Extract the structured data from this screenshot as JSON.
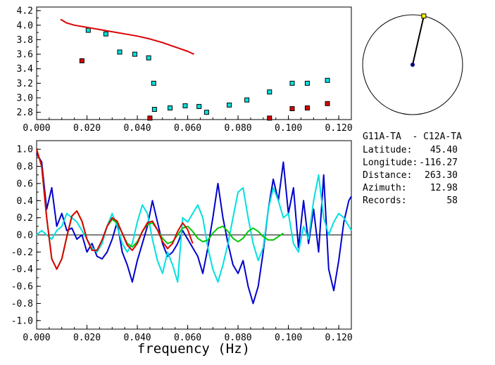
{
  "chart_data": [
    {
      "type": "scatter",
      "xlim": [
        0.0,
        0.125
      ],
      "ylim": [
        2.7,
        4.25
      ],
      "x_ticks": [
        "0.000",
        "0.020",
        "0.040",
        "0.060",
        "0.080",
        "0.100",
        "0.120"
      ],
      "y_ticks": [
        "2.8",
        "3.0",
        "3.2",
        "3.4",
        "3.6",
        "3.8",
        "4.0",
        "4.2"
      ],
      "grid": false,
      "series": [
        {
          "color": "#00e0e0",
          "marker": "square",
          "x": [
            0.0205,
            0.0275,
            0.033,
            0.039,
            0.0445,
            0.0465,
            0.0468,
            0.053,
            0.059,
            0.0645,
            0.0675,
            0.0765,
            0.0835,
            0.0925,
            0.1015,
            0.1075,
            0.1155
          ],
          "y": [
            3.93,
            3.88,
            3.63,
            3.6,
            3.55,
            3.2,
            2.84,
            2.86,
            2.89,
            2.88,
            2.8,
            2.9,
            2.97,
            3.08,
            3.2,
            3.2,
            3.24
          ]
        },
        {
          "color": "#dd0000",
          "marker": "square",
          "x": [
            0.018,
            0.045,
            0.0925,
            0.1015,
            0.1075,
            0.1155
          ],
          "y": [
            3.51,
            2.72,
            2.72,
            2.85,
            2.86,
            2.92
          ]
        },
        {
          "color": "#dd0000",
          "marker": "line",
          "x": [
            0.0095,
            0.012,
            0.015,
            0.02,
            0.025,
            0.03,
            0.035,
            0.04,
            0.045,
            0.05,
            0.055,
            0.06,
            0.0625
          ],
          "y": [
            4.08,
            4.03,
            4.0,
            3.97,
            3.94,
            3.91,
            3.88,
            3.85,
            3.81,
            3.76,
            3.7,
            3.64,
            3.6
          ]
        }
      ]
    },
    {
      "type": "line",
      "xlabel": "frequency (Hz)",
      "xlim": [
        0.0,
        0.125
      ],
      "ylim": [
        -1.1,
        1.1
      ],
      "x_ticks": [
        "0.000",
        "0.020",
        "0.040",
        "0.060",
        "0.080",
        "0.100",
        "0.120"
      ],
      "y_ticks": [
        "-1.0",
        "-0.8",
        "-0.6",
        "-0.4",
        "-0.2",
        "0.0",
        "0.2",
        "0.4",
        "0.6",
        "0.8",
        "1.0"
      ],
      "zero_line": true,
      "grid": false,
      "series": [
        {
          "color": "#0000cc",
          "x": [
            0.0,
            0.002,
            0.004,
            0.006,
            0.008,
            0.01,
            0.012,
            0.014,
            0.016,
            0.018,
            0.02,
            0.022,
            0.024,
            0.026,
            0.028,
            0.03,
            0.032,
            0.034,
            0.036,
            0.038,
            0.04,
            0.042,
            0.044,
            0.046,
            0.048,
            0.05,
            0.052,
            0.054,
            0.056,
            0.058,
            0.06,
            0.062,
            0.064,
            0.066,
            0.068,
            0.07,
            0.072,
            0.074,
            0.076,
            0.078,
            0.08,
            0.082,
            0.084,
            0.086,
            0.088,
            0.09,
            0.092,
            0.094,
            0.096,
            0.098,
            0.1,
            0.102,
            0.104,
            0.106,
            0.108,
            0.11,
            0.112,
            0.114,
            0.116,
            0.118,
            0.12,
            0.122,
            0.124,
            0.125
          ],
          "y": [
            0.95,
            0.85,
            0.3,
            0.55,
            0.1,
            0.25,
            0.05,
            0.08,
            -0.05,
            0.0,
            -0.2,
            -0.1,
            -0.25,
            -0.28,
            -0.2,
            -0.05,
            0.15,
            -0.2,
            -0.35,
            -0.55,
            -0.3,
            -0.1,
            0.1,
            0.4,
            0.15,
            -0.1,
            -0.25,
            -0.2,
            -0.1,
            0.05,
            -0.05,
            -0.15,
            -0.25,
            -0.45,
            -0.15,
            0.2,
            0.6,
            0.2,
            -0.1,
            -0.35,
            -0.45,
            -0.3,
            -0.6,
            -0.8,
            -0.6,
            -0.2,
            0.3,
            0.65,
            0.4,
            0.85,
            0.25,
            0.55,
            -0.15,
            0.4,
            -0.1,
            0.3,
            -0.2,
            0.7,
            -0.4,
            -0.65,
            -0.3,
            0.15,
            0.4,
            0.45
          ]
        },
        {
          "color": "#00e0e0",
          "x": [
            0.0,
            0.002,
            0.004,
            0.006,
            0.008,
            0.01,
            0.012,
            0.014,
            0.016,
            0.018,
            0.02,
            0.022,
            0.024,
            0.026,
            0.028,
            0.03,
            0.032,
            0.034,
            0.036,
            0.038,
            0.04,
            0.042,
            0.044,
            0.046,
            0.048,
            0.05,
            0.052,
            0.054,
            0.056,
            0.058,
            0.06,
            0.062,
            0.064,
            0.066,
            0.068,
            0.07,
            0.072,
            0.074,
            0.076,
            0.078,
            0.08,
            0.082,
            0.084,
            0.086,
            0.088,
            0.09,
            0.092,
            0.094,
            0.096,
            0.098,
            0.1,
            0.102,
            0.104,
            0.106,
            0.108,
            0.11,
            0.112,
            0.114,
            0.116,
            0.118,
            0.12,
            0.122,
            0.124,
            0.125
          ],
          "y": [
            0.0,
            0.05,
            0.0,
            -0.05,
            0.05,
            0.1,
            0.25,
            0.2,
            0.15,
            0.05,
            -0.05,
            -0.15,
            -0.2,
            -0.1,
            0.1,
            0.25,
            0.1,
            -0.1,
            -0.2,
            -0.1,
            0.15,
            0.35,
            0.25,
            -0.05,
            -0.3,
            -0.45,
            -0.2,
            -0.35,
            -0.55,
            0.2,
            0.15,
            0.25,
            0.35,
            0.2,
            -0.15,
            -0.4,
            -0.55,
            -0.35,
            -0.1,
            0.2,
            0.5,
            0.55,
            0.2,
            -0.1,
            -0.3,
            -0.15,
            0.3,
            0.55,
            0.4,
            0.2,
            0.25,
            -0.1,
            -0.2,
            0.1,
            -0.05,
            0.4,
            0.7,
            0.2,
            0.0,
            0.15,
            0.25,
            0.2,
            0.1,
            0.05
          ]
        },
        {
          "color": "#00c800",
          "x": [
            0.0,
            0.002,
            0.004,
            0.006,
            0.008,
            0.01,
            0.012,
            0.014,
            0.016,
            0.018,
            0.02,
            0.022,
            0.024,
            0.026,
            0.028,
            0.03,
            0.032,
            0.034,
            0.036,
            0.038,
            0.04,
            0.042,
            0.044,
            0.046,
            0.048,
            0.05,
            0.052,
            0.054,
            0.056,
            0.058,
            0.06,
            0.062,
            0.064,
            0.066,
            0.068,
            0.07,
            0.072,
            0.074,
            0.076,
            0.078,
            0.08,
            0.082,
            0.084,
            0.086,
            0.088,
            0.09,
            0.092,
            0.094,
            0.096,
            0.098
          ],
          "y": [
            1.0,
            0.8,
            0.2,
            -0.28,
            -0.4,
            -0.28,
            -0.02,
            0.22,
            0.28,
            0.16,
            -0.05,
            -0.18,
            -0.18,
            -0.06,
            0.1,
            0.18,
            0.14,
            0.02,
            -0.1,
            -0.14,
            -0.08,
            0.04,
            0.12,
            0.14,
            0.06,
            -0.04,
            -0.1,
            -0.08,
            0.0,
            0.08,
            0.1,
            0.04,
            -0.04,
            -0.08,
            -0.06,
            0.02,
            0.08,
            0.1,
            0.04,
            -0.04,
            -0.08,
            -0.04,
            0.04,
            0.08,
            0.04,
            -0.02,
            -0.06,
            -0.06,
            -0.02,
            0.02
          ]
        },
        {
          "color": "#dd0000",
          "x": [
            0.0,
            0.002,
            0.004,
            0.006,
            0.008,
            0.01,
            0.012,
            0.014,
            0.016,
            0.018,
            0.02,
            0.022,
            0.024,
            0.026,
            0.028,
            0.03,
            0.032,
            0.034,
            0.036,
            0.038,
            0.04,
            0.042,
            0.044,
            0.046,
            0.048,
            0.05,
            0.052,
            0.054,
            0.056,
            0.058,
            0.06,
            0.062
          ],
          "y": [
            1.0,
            0.8,
            0.2,
            -0.28,
            -0.4,
            -0.28,
            -0.02,
            0.22,
            0.28,
            0.16,
            -0.05,
            -0.18,
            -0.18,
            -0.06,
            0.1,
            0.2,
            0.16,
            0.02,
            -0.12,
            -0.18,
            -0.1,
            0.04,
            0.14,
            0.16,
            0.06,
            -0.08,
            -0.16,
            -0.1,
            0.04,
            0.14,
            0.06,
            -0.1
          ]
        }
      ]
    }
  ],
  "station": {
    "pair": "G11A-TA  - C12A-TA",
    "rows": [
      {
        "label": "Latitude:",
        "value": "45.40"
      },
      {
        "label": "Longitude:",
        "value": "-116.27"
      },
      {
        "label": "Distance:",
        "value": "263.30"
      },
      {
        "label": "Azimuth:",
        "value": "12.98"
      },
      {
        "label": "Records:",
        "value": "58"
      }
    ],
    "azimuth_deg": 12.98
  }
}
